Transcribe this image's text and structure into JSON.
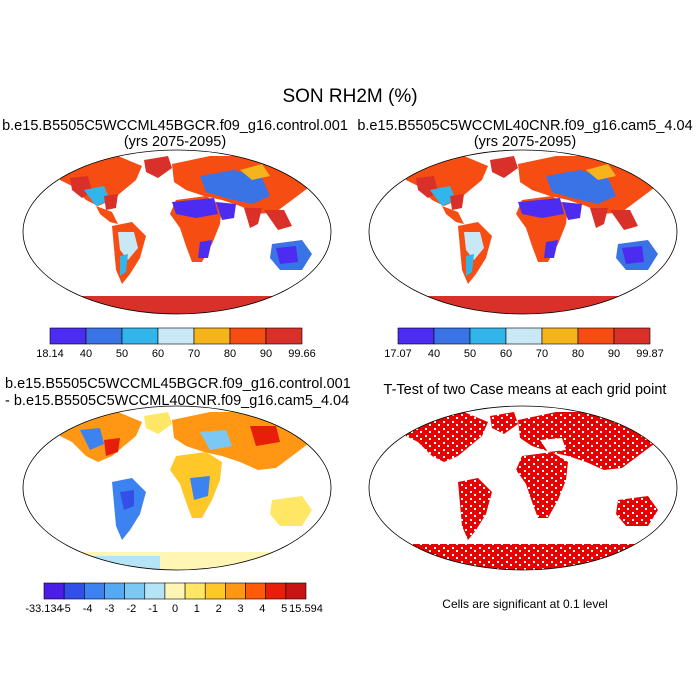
{
  "figure": {
    "title": "SON RH2M (%)"
  },
  "panels": [
    {
      "title_line1": "b.e15.B5505C5WCCML45BGCR.f09_g16.control.001",
      "title_line2": "(yrs 2075-2095)",
      "colorbar": {
        "labels": [
          "18.14",
          "40",
          "50",
          "60",
          "70",
          "80",
          "90",
          "99.66"
        ],
        "colors": [
          "#4b2cf0",
          "#3a73e6",
          "#32b5ea",
          "#c9e8f5",
          "#f5b31c",
          "#f54d12",
          "#d9302a"
        ]
      }
    },
    {
      "title_line1": "b.e15.B5505C5WCCML40CNR.f09_g16.cam5_4.04",
      "title_line2": "(yrs 2075-2095)",
      "colorbar": {
        "labels": [
          "17.07",
          "40",
          "50",
          "60",
          "70",
          "80",
          "90",
          "99.87"
        ],
        "colors": [
          "#4b2cf0",
          "#3a73e6",
          "#32b5ea",
          "#c9e8f5",
          "#f5b31c",
          "#f54d12",
          "#d9302a"
        ]
      }
    },
    {
      "title_line1": "b.e15.B5505C5WCCML45BGCR.f09_g16.control.001",
      "title_line2": "- b.e15.B5505C5WCCML40CNR.f09_g16.cam5_4.04",
      "colorbar": {
        "labels": [
          "-33.134",
          "-5",
          "-4",
          "-3",
          "-2",
          "-1",
          "0",
          "1",
          "2",
          "3",
          "4",
          "5",
          "15.594"
        ],
        "colors": [
          "#4b1ee6",
          "#3250e8",
          "#3c82f0",
          "#55aaf5",
          "#7cc8f5",
          "#b4e4f5",
          "#fff5b4",
          "#ffe664",
          "#ffc828",
          "#ff9614",
          "#ff5a0a",
          "#e61e0a",
          "#c81414"
        ]
      }
    },
    {
      "title_line1": "T-Test of two Case means at each grid point",
      "note": "Cells are significant at 0.1 level",
      "sig_color": "#e60000"
    }
  ]
}
